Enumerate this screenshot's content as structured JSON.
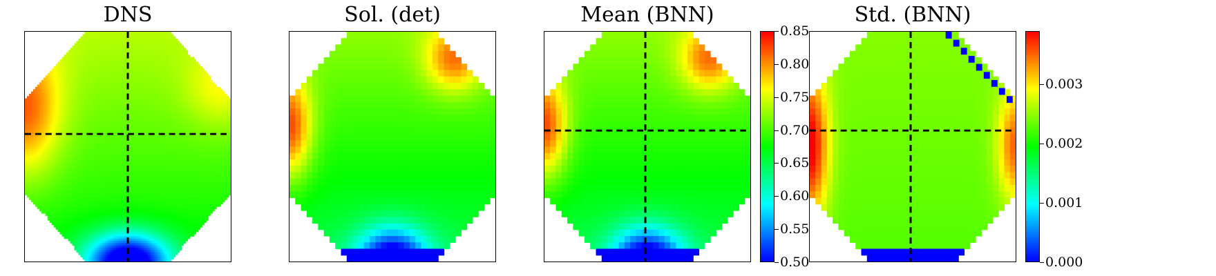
{
  "chart_data": [
    {
      "type": "heatmap",
      "title": "DNS",
      "field": "continuous",
      "crosshair": {
        "vertical": true,
        "horizontal": true
      }
    },
    {
      "type": "heatmap",
      "title": "Sol. (det)",
      "field": "pixelated",
      "crosshair": {
        "vertical": false,
        "horizontal": false
      }
    },
    {
      "type": "heatmap",
      "title": "Mean (BNN)",
      "field": "pixelated",
      "crosshair": {
        "vertical": true,
        "horizontal": true
      },
      "colorbar": {
        "range": [
          0.5,
          0.85
        ],
        "ticks": [
          0.85,
          0.8,
          0.75,
          0.7,
          0.65,
          0.6,
          0.55,
          0.5
        ],
        "tick_labels": [
          "0.85",
          "0.80",
          "0.75",
          "0.70",
          "0.65",
          "0.60",
          "0.55",
          "0.50"
        ]
      }
    },
    {
      "type": "heatmap",
      "title": "Std. (BNN)",
      "field": "pixelated",
      "crosshair": {
        "vertical": true,
        "horizontal": true
      },
      "colorbar": {
        "range": [
          0.0,
          0.0039
        ],
        "ticks": [
          0.003,
          0.002,
          0.001,
          0.0
        ],
        "tick_labels": [
          "0.003",
          "0.002",
          "0.001",
          "0.000"
        ]
      }
    }
  ],
  "colormap": [
    "#0000ff",
    "#00ffff",
    "#00ff00",
    "#ffff00",
    "#ff0000"
  ]
}
